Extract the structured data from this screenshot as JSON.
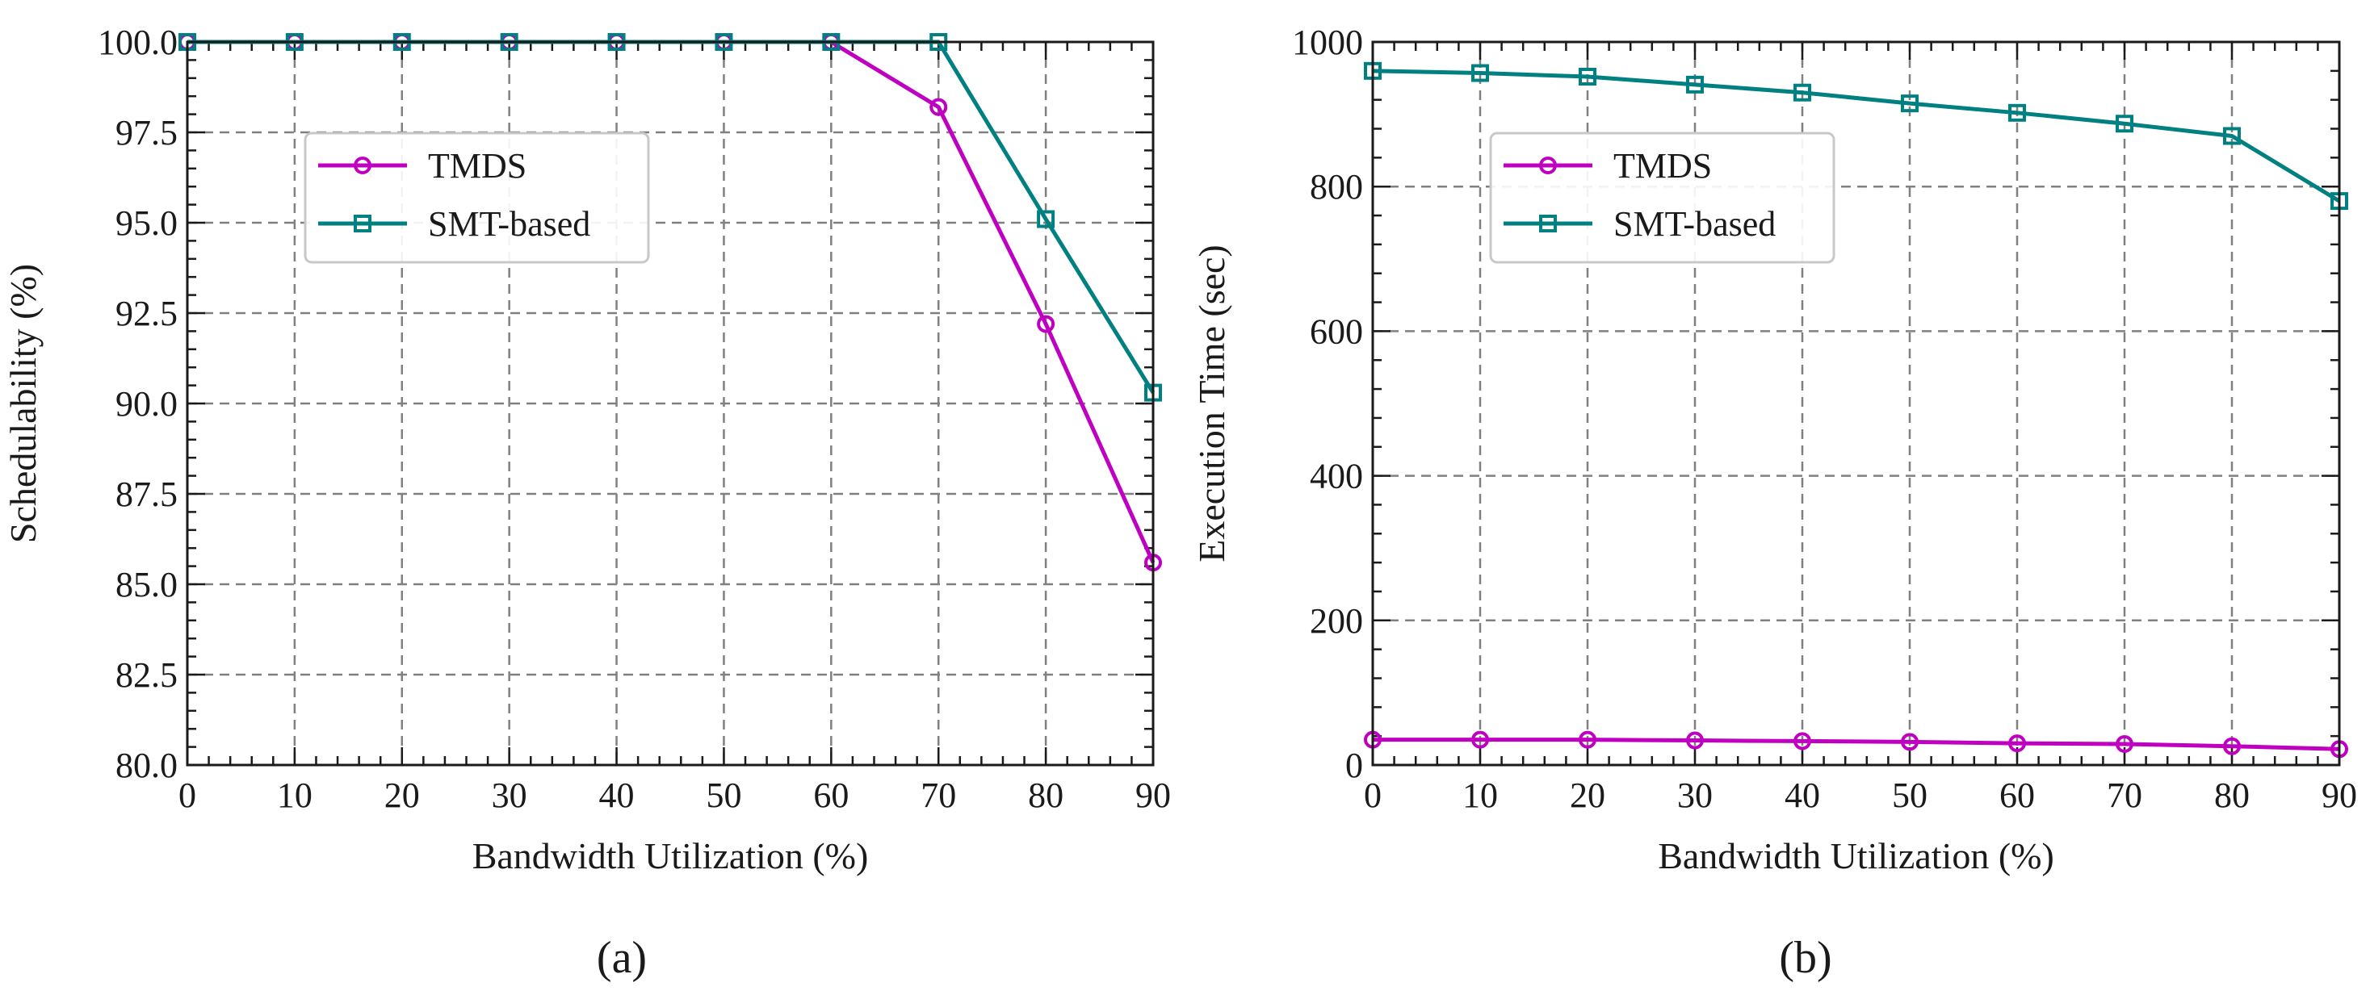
{
  "chart_data": [
    {
      "type": "line",
      "caption": "(a)",
      "xlabel": "Bandwidth Utilization (%)",
      "ylabel": "Schedulability (%)",
      "xlim": [
        0,
        90
      ],
      "ylim": [
        80,
        100
      ],
      "grid": true,
      "legend_position": "upper-left-inset",
      "x": [
        0,
        10,
        20,
        30,
        40,
        50,
        60,
        70,
        80,
        90
      ],
      "x_ticks": [
        0,
        10,
        20,
        30,
        40,
        50,
        60,
        70,
        80,
        90
      ],
      "x_tick_labels": [
        "0",
        "10",
        "20",
        "30",
        "40",
        "50",
        "60",
        "70",
        "80",
        "90"
      ],
      "y_ticks": [
        80,
        82.5,
        85,
        87.5,
        90,
        92.5,
        95,
        97.5,
        100
      ],
      "y_tick_labels": [
        "80.0",
        "82.5",
        "85.0",
        "87.5",
        "90.0",
        "92.5",
        "95.0",
        "97.5",
        "100.0"
      ],
      "series": [
        {
          "name": "TMDS",
          "marker": "circle",
          "color": "#c000c0",
          "values": [
            100,
            100,
            100,
            100,
            100,
            100,
            100,
            98.2,
            92.2,
            85.6
          ]
        },
        {
          "name": "SMT-based",
          "marker": "square",
          "color": "#008080",
          "values": [
            100,
            100,
            100,
            100,
            100,
            100,
            100,
            100,
            95.1,
            90.3
          ]
        }
      ]
    },
    {
      "type": "line",
      "caption": "(b)",
      "xlabel": "Bandwidth Utilization (%)",
      "ylabel": "Execution Time (sec)",
      "xlim": [
        0,
        90
      ],
      "ylim": [
        0,
        1000
      ],
      "grid": true,
      "legend_position": "upper-left-inset",
      "x": [
        0,
        10,
        20,
        30,
        40,
        50,
        60,
        70,
        80,
        90
      ],
      "x_ticks": [
        0,
        10,
        20,
        30,
        40,
        50,
        60,
        70,
        80,
        90
      ],
      "x_tick_labels": [
        "0",
        "10",
        "20",
        "30",
        "40",
        "50",
        "60",
        "70",
        "80",
        "90"
      ],
      "y_ticks": [
        0,
        200,
        400,
        600,
        800,
        1000
      ],
      "y_tick_labels": [
        "0",
        "200",
        "400",
        "600",
        "800",
        "1000"
      ],
      "series": [
        {
          "name": "TMDS",
          "marker": "circle",
          "color": "#c000c0",
          "values": [
            35,
            35,
            35,
            34,
            33,
            32,
            30,
            29,
            26,
            22
          ]
        },
        {
          "name": "SMT-based",
          "marker": "square",
          "color": "#008080",
          "values": [
            960,
            957,
            952,
            941,
            930,
            915,
            902,
            887,
            870,
            780
          ]
        }
      ]
    }
  ]
}
